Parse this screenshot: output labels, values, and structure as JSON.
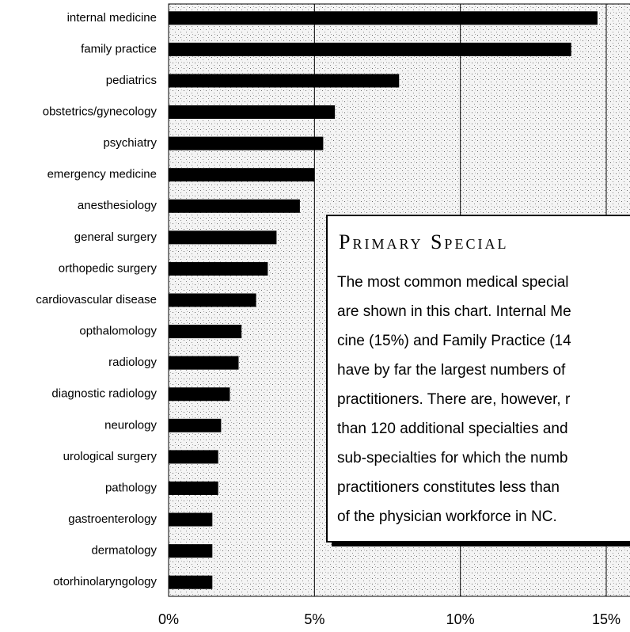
{
  "chart_data": {
    "type": "bar",
    "orientation": "horizontal",
    "categories": [
      "internal medicine",
      "family practice",
      "pediatrics",
      "obstetrics/gynecology",
      "psychiatry",
      "emergency medicine",
      "anesthesiology",
      "general surgery",
      "orthopedic surgery",
      "cardiovascular disease",
      "opthalomology",
      "radiology",
      "diagnostic radiology",
      "neurology",
      "urological surgery",
      "pathology",
      "gastroenterology",
      "dermatology",
      "otorhinolaryngology"
    ],
    "values": [
      14.7,
      13.8,
      7.9,
      5.7,
      5.3,
      5.0,
      4.5,
      3.7,
      3.4,
      3.0,
      2.5,
      2.4,
      2.1,
      1.8,
      1.7,
      1.7,
      1.5,
      1.5,
      1.5
    ],
    "color": "#000000",
    "xlim": [
      0,
      15
    ],
    "xticks": [
      {
        "value": 0,
        "label": "0%"
      },
      {
        "value": 5,
        "label": "5%"
      },
      {
        "value": 10,
        "label": "10%"
      },
      {
        "value": 15,
        "label": "15%"
      }
    ],
    "grid": true,
    "annotation": {
      "title": "Primary Special",
      "lines": [
        "The most common medical special",
        "are shown in this chart. Internal Me",
        "cine (15%) and Family Practice (14",
        "have by far the largest numbers of",
        "practitioners. There are, however, r",
        "than 120 additional specialties and",
        "sub-specialties for which the numb",
        "practitioners constitutes less than",
        "of the physician workforce in NC."
      ]
    }
  }
}
